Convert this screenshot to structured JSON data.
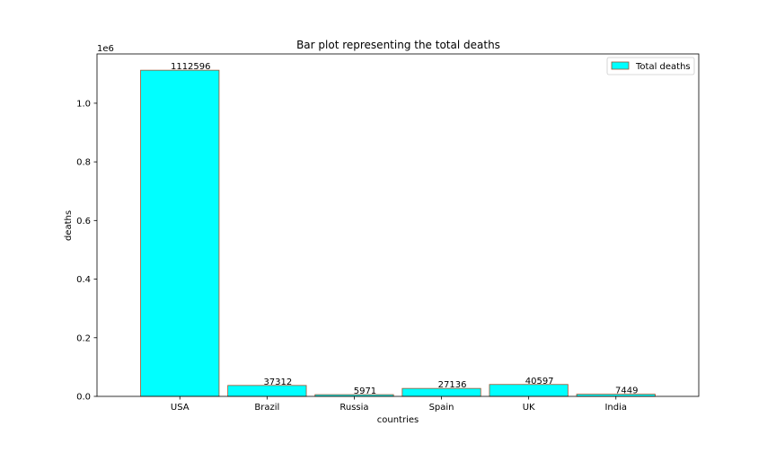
{
  "chart_data": {
    "type": "bar",
    "title": "Bar plot representing the total deaths",
    "xlabel": "countries",
    "ylabel": "deaths",
    "y_offset_text": "1e6",
    "categories": [
      "USA",
      "Brazil",
      "Russia",
      "Spain",
      "UK",
      "India"
    ],
    "series": [
      {
        "name": "Total deaths",
        "values": [
          1112596,
          37312,
          5971,
          27136,
          40597,
          7449
        ],
        "data_labels": [
          "1112596",
          "37312",
          "5971",
          "27136",
          "40597",
          "7449"
        ]
      }
    ],
    "ylim": [
      0,
      1168225.8
    ],
    "yticks": [
      0,
      200000,
      400000,
      600000,
      800000,
      1000000
    ],
    "ytick_labels": [
      "0.0",
      "0.2",
      "0.4",
      "0.6",
      "0.8",
      "1.0"
    ],
    "legend_placement": "top-right",
    "grid": false,
    "colors": {
      "bar_fill": "#00ffff",
      "bar_edge": "#a0522d"
    }
  }
}
